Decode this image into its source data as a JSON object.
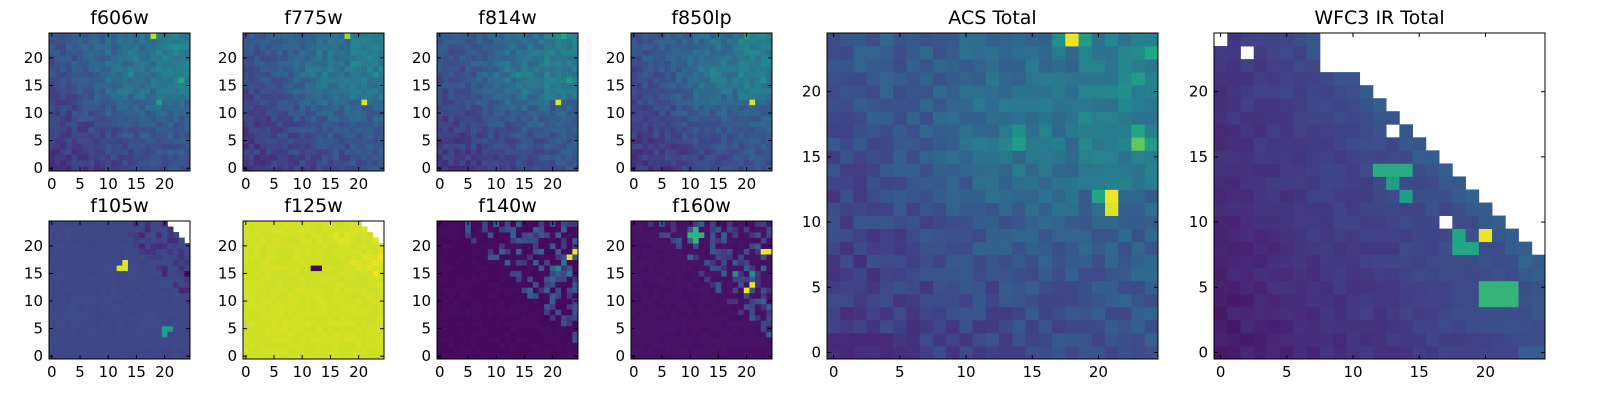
{
  "chart_data": {
    "type": "heatmap",
    "colormap": "viridis",
    "grid_size": 25,
    "panels": [
      {
        "id": "f606w",
        "title": "f606w",
        "xticks": [
          0,
          5,
          10,
          15,
          20
        ],
        "yticks": [
          0,
          5,
          10,
          15,
          20
        ],
        "xlim": [
          -0.5,
          24.5
        ],
        "ylim": [
          -0.5,
          24.5
        ],
        "pattern": "acs",
        "seed": 11,
        "features": [
          {
            "x": 14,
            "y": 17,
            "v": 0.45
          },
          {
            "x": 19,
            "y": 12,
            "v": 0.55
          },
          {
            "x": 23,
            "y": 16,
            "v": 0.6
          },
          {
            "x": 18,
            "y": 24,
            "v": 0.9
          },
          {
            "x": 22,
            "y": 22,
            "v": 0.5
          }
        ]
      },
      {
        "id": "f775w",
        "title": "f775w",
        "xticks": [
          0,
          5,
          10,
          15,
          20
        ],
        "yticks": [
          0,
          5,
          10,
          15,
          20
        ],
        "xlim": [
          -0.5,
          24.5
        ],
        "ylim": [
          -0.5,
          24.5
        ],
        "pattern": "acs",
        "seed": 23,
        "features": [
          {
            "x": 14,
            "y": 17,
            "v": 0.45
          },
          {
            "x": 21,
            "y": 12,
            "v": 0.95
          },
          {
            "x": 23,
            "y": 17,
            "v": 0.5
          },
          {
            "x": 18,
            "y": 24,
            "v": 0.85
          }
        ]
      },
      {
        "id": "f814w",
        "title": "f814w",
        "xticks": [
          0,
          5,
          10,
          15,
          20
        ],
        "yticks": [
          0,
          5,
          10,
          15,
          20
        ],
        "xlim": [
          -0.5,
          24.5
        ],
        "ylim": [
          -0.5,
          24.5
        ],
        "pattern": "acs",
        "seed": 37,
        "features": [
          {
            "x": 14,
            "y": 17,
            "v": 0.45
          },
          {
            "x": 21,
            "y": 12,
            "v": 0.95
          },
          {
            "x": 23,
            "y": 16,
            "v": 0.55
          },
          {
            "x": 22,
            "y": 24,
            "v": 0.6
          }
        ]
      },
      {
        "id": "f850lp",
        "title": "f850lp",
        "xticks": [
          0,
          5,
          10,
          15,
          20
        ],
        "yticks": [
          0,
          5,
          10,
          15,
          20
        ],
        "xlim": [
          -0.5,
          24.5
        ],
        "ylim": [
          -0.5,
          24.5
        ],
        "pattern": "acs",
        "seed": 41,
        "features": [
          {
            "x": 14,
            "y": 17,
            "v": 0.45
          },
          {
            "x": 21,
            "y": 12,
            "v": 0.95
          },
          {
            "x": 23,
            "y": 16,
            "v": 0.5
          },
          {
            "x": 20,
            "y": 24,
            "v": 0.55
          }
        ]
      },
      {
        "id": "f105w",
        "title": "f105w",
        "xticks": [
          0,
          5,
          10,
          15,
          20
        ],
        "yticks": [
          0,
          5,
          10,
          15,
          20
        ],
        "xlim": [
          -0.5,
          24.5
        ],
        "ylim": [
          -0.5,
          24.5
        ],
        "pattern": "flat",
        "base": 0.22,
        "seed": 53,
        "features": [
          {
            "x": 13,
            "y": 17,
            "v": 0.98
          },
          {
            "x": 12,
            "y": 16,
            "v": 0.95
          },
          {
            "x": 13,
            "y": 16,
            "v": 0.95
          },
          {
            "x": 20,
            "y": 5,
            "v": 0.55
          },
          {
            "x": 21,
            "y": 5,
            "v": 0.55
          },
          {
            "x": 20,
            "y": 4,
            "v": 0.55
          },
          {
            "x": 24,
            "y": 15,
            "v": 0.02
          }
        ]
      },
      {
        "id": "f125w",
        "title": "f125w",
        "xticks": [
          0,
          5,
          10,
          15,
          20
        ],
        "yticks": [
          0,
          5,
          10,
          15,
          20
        ],
        "xlim": [
          -0.5,
          24.5
        ],
        "ylim": [
          -0.5,
          24.5
        ],
        "pattern": "flat",
        "base": 0.93,
        "seed": 67,
        "features": [
          {
            "x": 12,
            "y": 16,
            "v": 0.02
          },
          {
            "x": 13,
            "y": 16,
            "v": 0.02
          },
          {
            "x": 23,
            "y": 17,
            "v": 0.98
          },
          {
            "x": 24,
            "y": 18,
            "v": 0.98
          },
          {
            "x": 23,
            "y": 15,
            "v": 0.98
          }
        ]
      },
      {
        "id": "f140w",
        "title": "f140w",
        "xticks": [
          0,
          5,
          10,
          15,
          20
        ],
        "yticks": [
          0,
          5,
          10,
          15,
          20
        ],
        "xlim": [
          -0.5,
          24.5
        ],
        "ylim": [
          -0.5,
          24.5
        ],
        "pattern": "dark",
        "base": 0.02,
        "seed": 79,
        "features": [
          {
            "x": 24,
            "y": 19,
            "v": 0.98
          },
          {
            "x": 23,
            "y": 18,
            "v": 0.98
          },
          {
            "x": 22,
            "y": 17,
            "v": 0.4
          },
          {
            "x": 21,
            "y": 16,
            "v": 0.45
          },
          {
            "x": 23,
            "y": 15,
            "v": 0.4
          }
        ]
      },
      {
        "id": "f160w",
        "title": "f160w",
        "xticks": [
          0,
          5,
          10,
          15,
          20
        ],
        "yticks": [
          0,
          5,
          10,
          15,
          20
        ],
        "xlim": [
          -0.5,
          24.5
        ],
        "ylim": [
          -0.5,
          24.5
        ],
        "pattern": "dark",
        "base": 0.04,
        "seed": 83,
        "features": [
          {
            "x": 11,
            "y": 22,
            "v": 0.65
          },
          {
            "x": 10,
            "y": 22,
            "v": 0.65
          },
          {
            "x": 11,
            "y": 23,
            "v": 0.65
          },
          {
            "x": 12,
            "y": 22,
            "v": 0.65
          },
          {
            "x": 11,
            "y": 21,
            "v": 0.65
          },
          {
            "x": 20,
            "y": 12,
            "v": 0.98
          },
          {
            "x": 21,
            "y": 13,
            "v": 0.98
          },
          {
            "x": 23,
            "y": 19,
            "v": 0.98
          },
          {
            "x": 24,
            "y": 19,
            "v": 0.98
          },
          {
            "x": 18,
            "y": 15,
            "v": 0.5
          },
          {
            "x": 21,
            "y": 15,
            "v": 0.5
          }
        ]
      },
      {
        "id": "acs-total",
        "title": "ACS Total",
        "xticks": [
          0,
          5,
          10,
          15,
          20
        ],
        "yticks": [
          0,
          5,
          10,
          15,
          20
        ],
        "xlim": [
          -0.5,
          24.5
        ],
        "ylim": [
          -0.5,
          24.5
        ],
        "pattern": "acs",
        "seed": 97,
        "features": [
          {
            "x": 18,
            "y": 24,
            "v": 0.98
          },
          {
            "x": 17,
            "y": 24,
            "v": 0.5
          },
          {
            "x": 19,
            "y": 24,
            "v": 0.55
          },
          {
            "x": 21,
            "y": 12,
            "v": 0.98
          },
          {
            "x": 21,
            "y": 11,
            "v": 0.95
          },
          {
            "x": 20,
            "y": 12,
            "v": 0.6
          },
          {
            "x": 14,
            "y": 16,
            "v": 0.55
          },
          {
            "x": 14,
            "y": 17,
            "v": 0.5
          },
          {
            "x": 13,
            "y": 16,
            "v": 0.45
          },
          {
            "x": 23,
            "y": 16,
            "v": 0.75
          },
          {
            "x": 23,
            "y": 17,
            "v": 0.6
          },
          {
            "x": 24,
            "y": 16,
            "v": 0.55
          },
          {
            "x": 22,
            "y": 20,
            "v": 0.5
          },
          {
            "x": 23,
            "y": 21,
            "v": 0.55
          },
          {
            "x": 24,
            "y": 23,
            "v": 0.6
          }
        ]
      },
      {
        "id": "wfc3-ir-total",
        "title": "WFC3 IR Total",
        "xticks": [
          0,
          5,
          10,
          15,
          20
        ],
        "yticks": [
          0,
          5,
          10,
          15,
          20
        ],
        "xlim": [
          -0.5,
          24.5
        ],
        "ylim": [
          -0.5,
          24.5
        ],
        "pattern": "wfc",
        "seed": 101,
        "features": [
          {
            "x": 20,
            "y": 9,
            "v": 0.98
          },
          {
            "x": 18,
            "y": 8,
            "v": 0.6
          },
          {
            "x": 19,
            "y": 8,
            "v": 0.6
          },
          {
            "x": 18,
            "y": 9,
            "v": 0.6
          },
          {
            "x": 13,
            "y": 14,
            "v": 0.62
          },
          {
            "x": 14,
            "y": 14,
            "v": 0.62
          },
          {
            "x": 12,
            "y": 14,
            "v": 0.62
          },
          {
            "x": 13,
            "y": 13,
            "v": 0.55
          },
          {
            "x": 14,
            "y": 12,
            "v": 0.55
          },
          {
            "x": 20,
            "y": 5,
            "v": 0.65
          },
          {
            "x": 21,
            "y": 5,
            "v": 0.65
          },
          {
            "x": 22,
            "y": 5,
            "v": 0.65
          },
          {
            "x": 20,
            "y": 4,
            "v": 0.65
          },
          {
            "x": 21,
            "y": 4,
            "v": 0.65
          },
          {
            "x": 22,
            "y": 4,
            "v": 0.65
          },
          {
            "x": 23,
            "y": 0,
            "v": 0.3
          },
          {
            "x": 24,
            "y": 0,
            "v": 0.3
          }
        ]
      }
    ]
  }
}
